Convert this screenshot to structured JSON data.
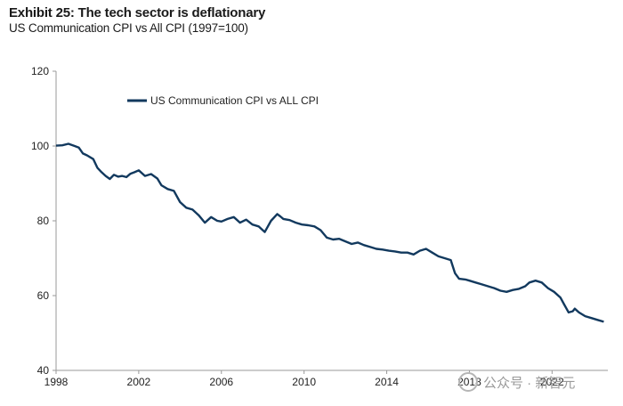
{
  "header": {
    "title": "Exhibit 25: The tech sector is deflationary",
    "subtitle": "US Communication CPI vs All CPI (1997=100)"
  },
  "watermark": {
    "text": "公众号 · 新智元"
  },
  "colors": {
    "series": "#12395e",
    "axis": "#999999"
  },
  "chart_data": {
    "type": "line",
    "title": "Exhibit 25: The tech sector is deflationary",
    "subtitle": "US Communication CPI vs All CPI (1997=100)",
    "xlabel": "",
    "ylabel": "",
    "xlim": [
      1998,
      2024.7
    ],
    "ylim": [
      40,
      120
    ],
    "yticks": [
      40,
      60,
      80,
      100,
      120
    ],
    "xticks": [
      1998,
      2002,
      2006,
      2010,
      2014,
      2018,
      2022
    ],
    "ytick_labels": [
      "40",
      "60",
      "80",
      "100",
      "120"
    ],
    "xtick_labels": [
      "1998",
      "2002",
      "2006",
      "2010",
      "2014",
      "2018",
      "2022"
    ],
    "grid": false,
    "legend": {
      "position": "top-left",
      "entries": [
        "US Communication CPI vs ALL CPI"
      ]
    },
    "series": [
      {
        "name": "US Communication CPI vs ALL CPI",
        "x": [
          1998.0,
          1998.3,
          1998.6,
          1998.9,
          1999.1,
          1999.3,
          1999.5,
          1999.8,
          2000.0,
          2000.2,
          2000.4,
          2000.6,
          2000.8,
          2001.0,
          2001.2,
          2001.4,
          2001.6,
          2001.8,
          2002.0,
          2002.3,
          2002.6,
          2002.9,
          2003.1,
          2003.4,
          2003.7,
          2004.0,
          2004.3,
          2004.6,
          2004.9,
          2005.2,
          2005.5,
          2005.8,
          2006.0,
          2006.3,
          2006.6,
          2006.9,
          2007.2,
          2007.5,
          2007.8,
          2008.1,
          2008.4,
          2008.7,
          2008.85,
          2009.0,
          2009.3,
          2009.6,
          2009.9,
          2010.2,
          2010.5,
          2010.8,
          2011.1,
          2011.4,
          2011.7,
          2012.0,
          2012.3,
          2012.6,
          2012.9,
          2013.2,
          2013.5,
          2013.8,
          2014.1,
          2014.4,
          2014.7,
          2015.0,
          2015.3,
          2015.6,
          2015.9,
          2016.2,
          2016.5,
          2016.8,
          2017.1,
          2017.3,
          2017.5,
          2017.8,
          2018.0,
          2018.3,
          2018.6,
          2018.9,
          2019.2,
          2019.5,
          2019.8,
          2020.1,
          2020.4,
          2020.7,
          2020.9,
          2021.2,
          2021.5,
          2021.8,
          2022.1,
          2022.4,
          2022.6,
          2022.8,
          2023.0,
          2023.1,
          2023.3,
          2023.6,
          2023.9,
          2024.2,
          2024.5
        ],
        "values": [
          100.1,
          100.2,
          100.6,
          100.0,
          99.6,
          98.0,
          97.5,
          96.5,
          94.2,
          93.0,
          92.0,
          91.2,
          92.3,
          91.8,
          92.0,
          91.7,
          92.6,
          93.0,
          93.5,
          92.0,
          92.5,
          91.3,
          89.5,
          88.5,
          88.0,
          85.0,
          83.5,
          83.0,
          81.5,
          79.5,
          81.0,
          80.0,
          79.8,
          80.5,
          81.0,
          79.5,
          80.3,
          79.0,
          78.5,
          77.0,
          80.0,
          81.8,
          81.2,
          80.5,
          80.2,
          79.5,
          79.0,
          78.8,
          78.5,
          77.5,
          75.5,
          75.0,
          75.2,
          74.5,
          73.8,
          74.2,
          73.5,
          73.0,
          72.5,
          72.3,
          72.0,
          71.8,
          71.5,
          71.5,
          71.0,
          72.0,
          72.5,
          71.5,
          70.5,
          70.0,
          69.5,
          66.0,
          64.5,
          64.3,
          64.0,
          63.5,
          63.0,
          62.5,
          62.0,
          61.3,
          61.0,
          61.5,
          61.8,
          62.5,
          63.5,
          64.0,
          63.5,
          62.0,
          61.0,
          59.5,
          57.5,
          55.5,
          55.8,
          56.5,
          55.5,
          54.5,
          54.0,
          53.5,
          53.0
        ]
      }
    ]
  }
}
